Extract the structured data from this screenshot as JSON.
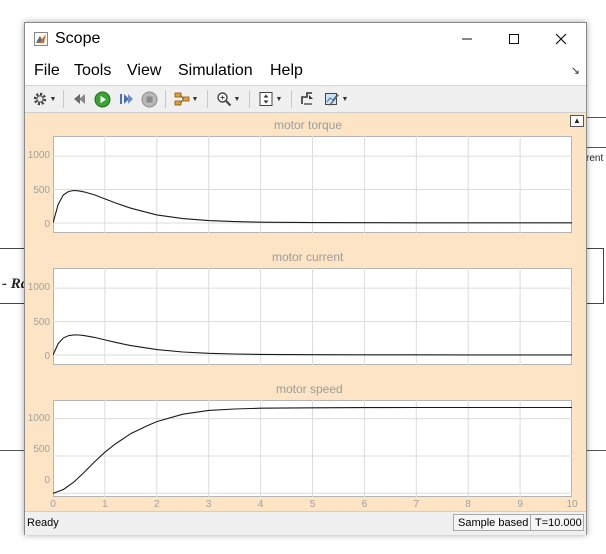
{
  "window": {
    "title": "Scope"
  },
  "menu": {
    "items": [
      "File",
      "Tools",
      "View",
      "Simulation",
      "Help"
    ]
  },
  "toolbar": {
    "icons": [
      "gear-icon",
      "step-back-icon",
      "run-icon",
      "step-forward-icon",
      "stop-icon",
      "signal-selector-icon",
      "zoom-icon",
      "autoscale-icon",
      "highlight-icon",
      "style-icon"
    ]
  },
  "background": {
    "block_text": "- Ra",
    "port_text": "rent"
  },
  "axes": [
    {
      "title": "motor torque",
      "yticks": [
        "1000",
        "500",
        "0"
      ],
      "chart_data": {
        "type": "line",
        "xlabel": "",
        "ylabel": "",
        "xlim": [
          0,
          10
        ],
        "ylim": [
          -150,
          1300
        ],
        "x": [
          0,
          0.1,
          0.2,
          0.3,
          0.4,
          0.5,
          0.6,
          0.8,
          1.0,
          1.2,
          1.5,
          2.0,
          2.5,
          3.0,
          3.5,
          4.0,
          5.0,
          6.0,
          7.0,
          8.0,
          9.0,
          10.0
        ],
        "y": [
          0,
          280,
          420,
          470,
          485,
          480,
          465,
          420,
          360,
          300,
          220,
          120,
          65,
          35,
          20,
          12,
          6,
          4,
          3,
          2,
          2,
          2
        ]
      }
    },
    {
      "title": "motor current",
      "yticks": [
        "1000",
        "500",
        "0"
      ],
      "chart_data": {
        "type": "line",
        "xlabel": "",
        "ylabel": "",
        "xlim": [
          0,
          10
        ],
        "ylim": [
          -150,
          1300
        ],
        "x": [
          0,
          0.1,
          0.2,
          0.3,
          0.4,
          0.5,
          0.6,
          0.8,
          1.0,
          1.2,
          1.5,
          2.0,
          2.5,
          3.0,
          3.5,
          4.0,
          5.0,
          6.0,
          7.0,
          8.0,
          9.0,
          10.0
        ],
        "y": [
          0,
          170,
          255,
          290,
          300,
          298,
          290,
          262,
          225,
          190,
          140,
          80,
          45,
          25,
          14,
          8,
          4,
          3,
          2,
          1,
          1,
          1
        ]
      }
    },
    {
      "title": "motor speed",
      "yticks": [
        "1000",
        "500",
        "0"
      ],
      "xticks": [
        "0",
        "1",
        "2",
        "3",
        "4",
        "5",
        "6",
        "7",
        "8",
        "9",
        "10"
      ],
      "chart_data": {
        "type": "line",
        "xlabel": "",
        "ylabel": "",
        "xlim": [
          0,
          10
        ],
        "ylim": [
          -50,
          1250
        ],
        "x": [
          0,
          0.2,
          0.4,
          0.6,
          0.8,
          1.0,
          1.2,
          1.5,
          1.8,
          2.0,
          2.5,
          3.0,
          3.5,
          4.0,
          5.0,
          6.0,
          7.0,
          8.0,
          9.0,
          10.0
        ],
        "y": [
          0,
          50,
          150,
          280,
          420,
          550,
          660,
          800,
          900,
          960,
          1060,
          1110,
          1130,
          1140,
          1145,
          1148,
          1149,
          1150,
          1150,
          1150
        ]
      }
    }
  ],
  "status": {
    "ready": "Ready",
    "mode": "Sample based",
    "time": "T=10.000"
  }
}
